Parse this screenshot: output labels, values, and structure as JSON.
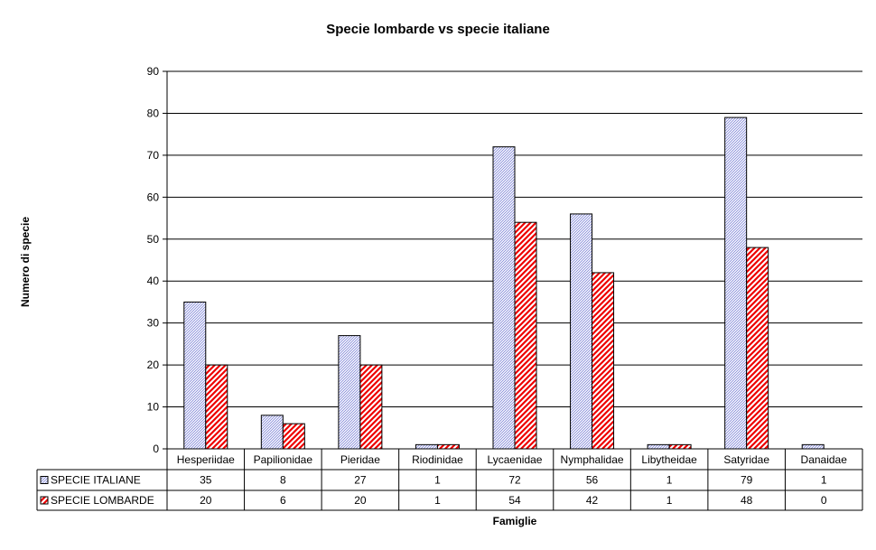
{
  "chart_data": {
    "type": "bar",
    "title": "Specie lombarde vs specie italiane",
    "xlabel": "Famiglie",
    "ylabel": "Numero di specie",
    "ylim": [
      0,
      90
    ],
    "yticks": [
      "0",
      "10",
      "20",
      "30",
      "40",
      "50",
      "60",
      "70",
      "80",
      "90"
    ],
    "grid": true,
    "legend": "data-table",
    "categories": [
      "Hesperiidae",
      "Papilionidae",
      "Pieridae",
      "Riodinidae",
      "Lycaenidae",
      "Nymphalidae",
      "Libytheidae",
      "Satyridae",
      "Danaidae"
    ],
    "series": [
      {
        "name": "SPECIE ITALIANE",
        "values": [
          35,
          8,
          27,
          1,
          72,
          56,
          1,
          79,
          1
        ],
        "color": "#c6c9f0",
        "pattern": "light-diagonal-hatch"
      },
      {
        "name": "SPECIE LOMBARDE",
        "values": [
          20,
          6,
          20,
          1,
          54,
          42,
          1,
          48,
          0
        ],
        "color": "#ff0000",
        "pattern": "wide-diagonal-stripes"
      }
    ]
  }
}
